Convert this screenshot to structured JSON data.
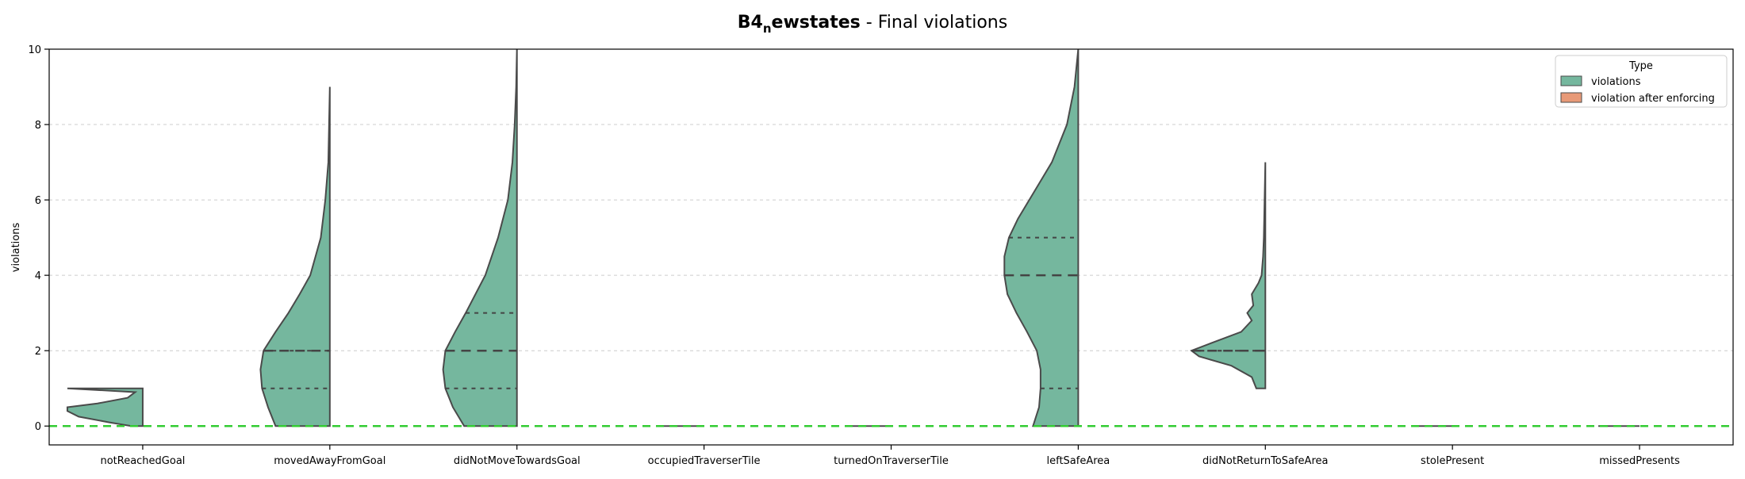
{
  "title": {
    "bold_main": "B4",
    "bold_sub": "n",
    "bold_rest": "ewstates",
    "plain": " - Final violations"
  },
  "colors": {
    "violations": "#75b79e",
    "violation_after_enforcing": "#e89a78",
    "edge": "#4a4a4a",
    "zero_line": "#33cc33"
  },
  "chart_data": {
    "type": "violin",
    "title": "B4_newstates - Final violations",
    "xlabel": "",
    "ylabel": "violations",
    "ylim": [
      -0.5,
      10
    ],
    "yticks": [
      0,
      2,
      4,
      6,
      8,
      10
    ],
    "grid": true,
    "legend": {
      "title": "Type",
      "placement": "top-right",
      "entries": [
        "violations",
        "violation after enforcing"
      ]
    },
    "reference_line": {
      "y": 0,
      "style": "dashed",
      "color": "#33cc33"
    },
    "categories": [
      "notReachedGoal",
      "movedAwayFromGoal",
      "didNotMoveTowardsGoal",
      "occupiedTraverserTile",
      "turnedOnTraverserTile",
      "leftSafeArea",
      "didNotReturnToSafeArea",
      "stolePresent",
      "missedPresents"
    ],
    "series": [
      {
        "name": "violations",
        "violins": [
          {
            "category": "notReachedGoal",
            "min": 0,
            "max": 1,
            "q1": null,
            "median": null,
            "q3": null,
            "profile": [
              [
                0,
                0.15
              ],
              [
                0.1,
                0.45
              ],
              [
                0.25,
                0.85
              ],
              [
                0.4,
                1.0
              ],
              [
                0.5,
                1.0
              ],
              [
                0.6,
                0.6
              ],
              [
                0.75,
                0.2
              ],
              [
                0.9,
                0.1
              ],
              [
                1,
                1.0
              ]
            ]
          },
          {
            "category": "movedAwayFromGoal",
            "min": 0,
            "max": 9,
            "q1": 1,
            "median": 2,
            "q3": 2,
            "profile": [
              [
                0,
                0.72
              ],
              [
                0.5,
                0.82
              ],
              [
                1,
                0.9
              ],
              [
                1.5,
                0.92
              ],
              [
                2,
                0.88
              ],
              [
                2.5,
                0.72
              ],
              [
                3,
                0.55
              ],
              [
                3.5,
                0.4
              ],
              [
                4,
                0.26
              ],
              [
                5,
                0.12
              ],
              [
                6,
                0.06
              ],
              [
                7,
                0.02
              ],
              [
                8,
                0.01
              ],
              [
                9,
                0.0
              ]
            ]
          },
          {
            "category": "didNotMoveTowardsGoal",
            "min": 0,
            "max": 10,
            "q1": 1,
            "median": 2,
            "q3": 3,
            "profile": [
              [
                0,
                0.7
              ],
              [
                0.5,
                0.85
              ],
              [
                1,
                0.95
              ],
              [
                1.5,
                0.98
              ],
              [
                2,
                0.95
              ],
              [
                2.5,
                0.82
              ],
              [
                3,
                0.68
              ],
              [
                4,
                0.42
              ],
              [
                5,
                0.25
              ],
              [
                6,
                0.12
              ],
              [
                7,
                0.06
              ],
              [
                8,
                0.03
              ],
              [
                9,
                0.01
              ],
              [
                10,
                0.0
              ]
            ]
          },
          {
            "category": "occupiedTraverserTile",
            "min": 0,
            "max": 0,
            "q1": null,
            "median": null,
            "q3": null,
            "profile": []
          },
          {
            "category": "turnedOnTraverserTile",
            "min": 0,
            "max": 0,
            "q1": null,
            "median": null,
            "q3": null,
            "profile": []
          },
          {
            "category": "leftSafeArea",
            "min": 0,
            "max": 10,
            "q1": 1,
            "median": 4,
            "q3": 5,
            "profile": [
              [
                0,
                0.6
              ],
              [
                0.5,
                0.52
              ],
              [
                1,
                0.5
              ],
              [
                1.5,
                0.5
              ],
              [
                2,
                0.55
              ],
              [
                2.5,
                0.68
              ],
              [
                3,
                0.82
              ],
              [
                3.5,
                0.94
              ],
              [
                4,
                0.98
              ],
              [
                4.5,
                0.98
              ],
              [
                5,
                0.92
              ],
              [
                5.5,
                0.8
              ],
              [
                6,
                0.65
              ],
              [
                6.5,
                0.5
              ],
              [
                7,
                0.35
              ],
              [
                8,
                0.15
              ],
              [
                9,
                0.05
              ],
              [
                10,
                0.0
              ]
            ]
          },
          {
            "category": "didNotReturnToSafeArea",
            "min": 1,
            "max": 7,
            "q1": 2,
            "median": 2,
            "q3": 2,
            "profile": [
              [
                1,
                0.12
              ],
              [
                1.3,
                0.18
              ],
              [
                1.6,
                0.45
              ],
              [
                1.85,
                0.88
              ],
              [
                2,
                0.98
              ],
              [
                2.2,
                0.72
              ],
              [
                2.5,
                0.32
              ],
              [
                2.8,
                0.18
              ],
              [
                3,
                0.24
              ],
              [
                3.2,
                0.16
              ],
              [
                3.5,
                0.18
              ],
              [
                3.8,
                0.09
              ],
              [
                4,
                0.05
              ],
              [
                4.5,
                0.03
              ],
              [
                5,
                0.02
              ],
              [
                6,
                0.01
              ],
              [
                7,
                0.0
              ]
            ]
          },
          {
            "category": "stolePresent",
            "min": 0,
            "max": 0,
            "q1": null,
            "median": null,
            "q3": null,
            "profile": []
          },
          {
            "category": "missedPresents",
            "min": 0,
            "max": 0,
            "q1": null,
            "median": null,
            "q3": null,
            "profile": []
          }
        ]
      },
      {
        "name": "violation after enforcing",
        "violins": []
      }
    ]
  }
}
